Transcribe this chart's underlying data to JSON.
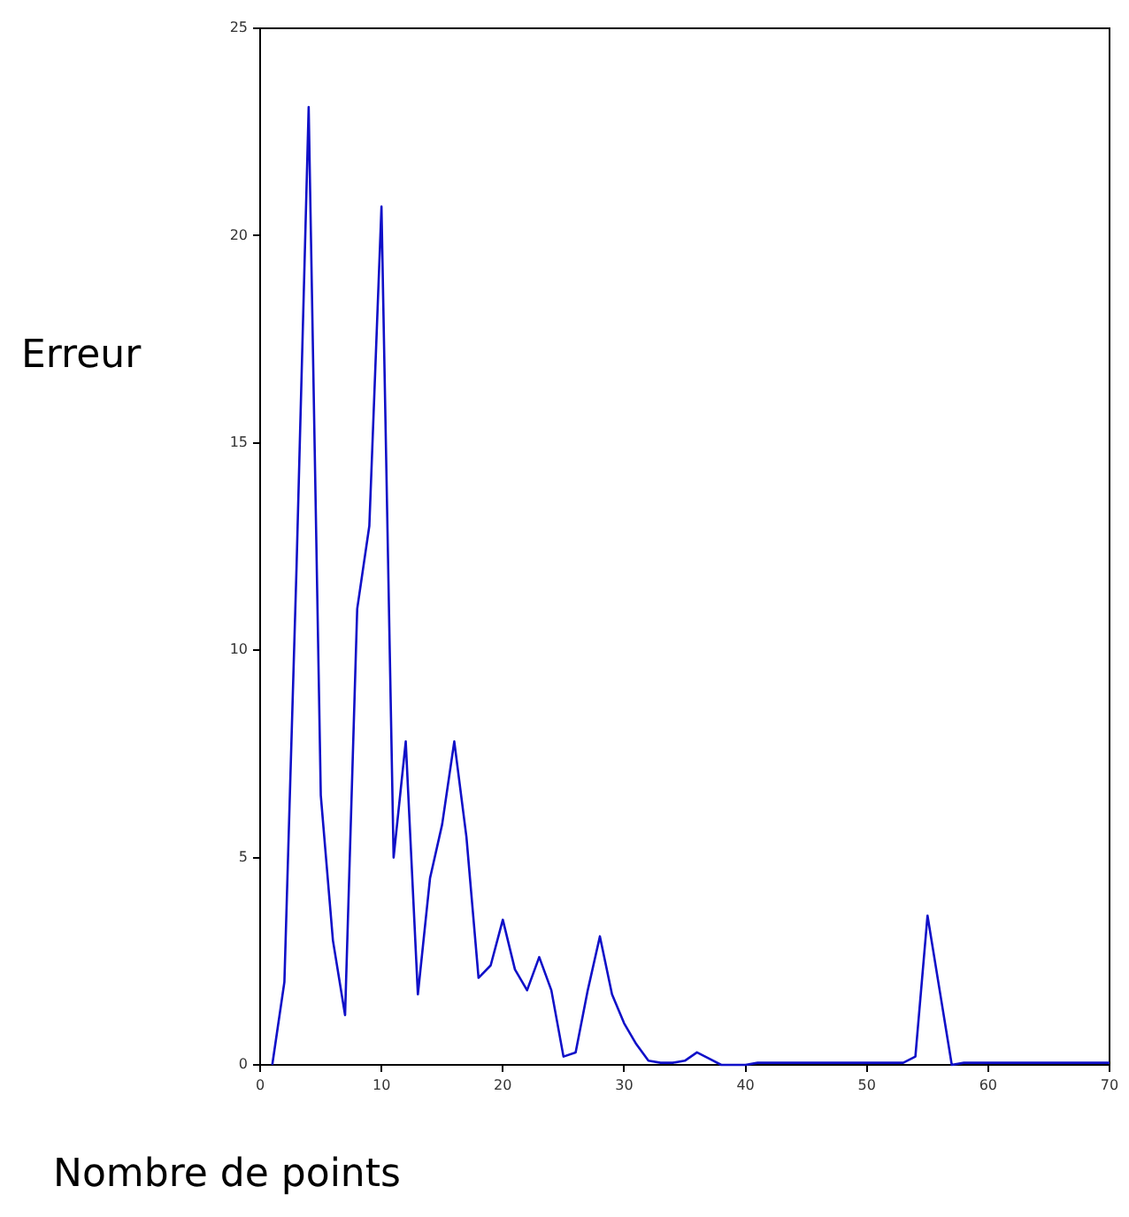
{
  "chart_data": {
    "type": "line",
    "xlabel": "Nombre de points",
    "ylabel": "Erreur",
    "x": [
      1,
      2,
      3,
      4,
      5,
      6,
      7,
      8,
      9,
      10,
      11,
      12,
      13,
      14,
      15,
      16,
      17,
      18,
      19,
      20,
      21,
      22,
      23,
      24,
      25,
      26,
      27,
      28,
      29,
      30,
      31,
      32,
      33,
      34,
      35,
      36,
      37,
      38,
      39,
      40,
      41,
      42,
      43,
      44,
      45,
      46,
      47,
      48,
      49,
      50,
      51,
      52,
      53,
      54,
      55,
      56,
      57,
      58,
      59,
      60,
      61,
      62,
      63,
      64,
      65,
      66,
      67,
      68,
      69,
      70
    ],
    "series": [
      {
        "color": "#1010c8",
        "values": [
          0,
          2,
          12,
          23.1,
          6.5,
          3,
          1.2,
          11,
          13,
          20.7,
          5,
          7.8,
          1.7,
          4.5,
          5.8,
          7.8,
          5.5,
          2.1,
          2.4,
          3.5,
          2.3,
          1.8,
          2.6,
          1.8,
          0.2,
          0.3,
          1.8,
          3.1,
          1.7,
          1,
          0.5,
          0.1,
          0.05,
          0.05,
          0.1,
          0.3,
          0.15,
          0,
          0,
          0,
          0.05,
          0.05,
          0.05,
          0.05,
          0.05,
          0.05,
          0.05,
          0.05,
          0.05,
          0.05,
          0.05,
          0.05,
          0.05,
          0.2,
          3.6,
          1.8,
          0,
          0.05,
          0.05,
          0.05,
          0.05,
          0.05,
          0.05,
          0.05,
          0.05,
          0.05,
          0.05,
          0.05,
          0.05,
          0.05
        ]
      }
    ],
    "xlim": [
      0,
      70
    ],
    "xticks": [
      0,
      10,
      20,
      30,
      40,
      50,
      60,
      70
    ],
    "ylim": [
      0,
      25
    ],
    "yticks": [
      0,
      5,
      10,
      15,
      20,
      25
    ],
    "grid": false,
    "legend": false,
    "marker": "none",
    "line_style": "solid"
  }
}
